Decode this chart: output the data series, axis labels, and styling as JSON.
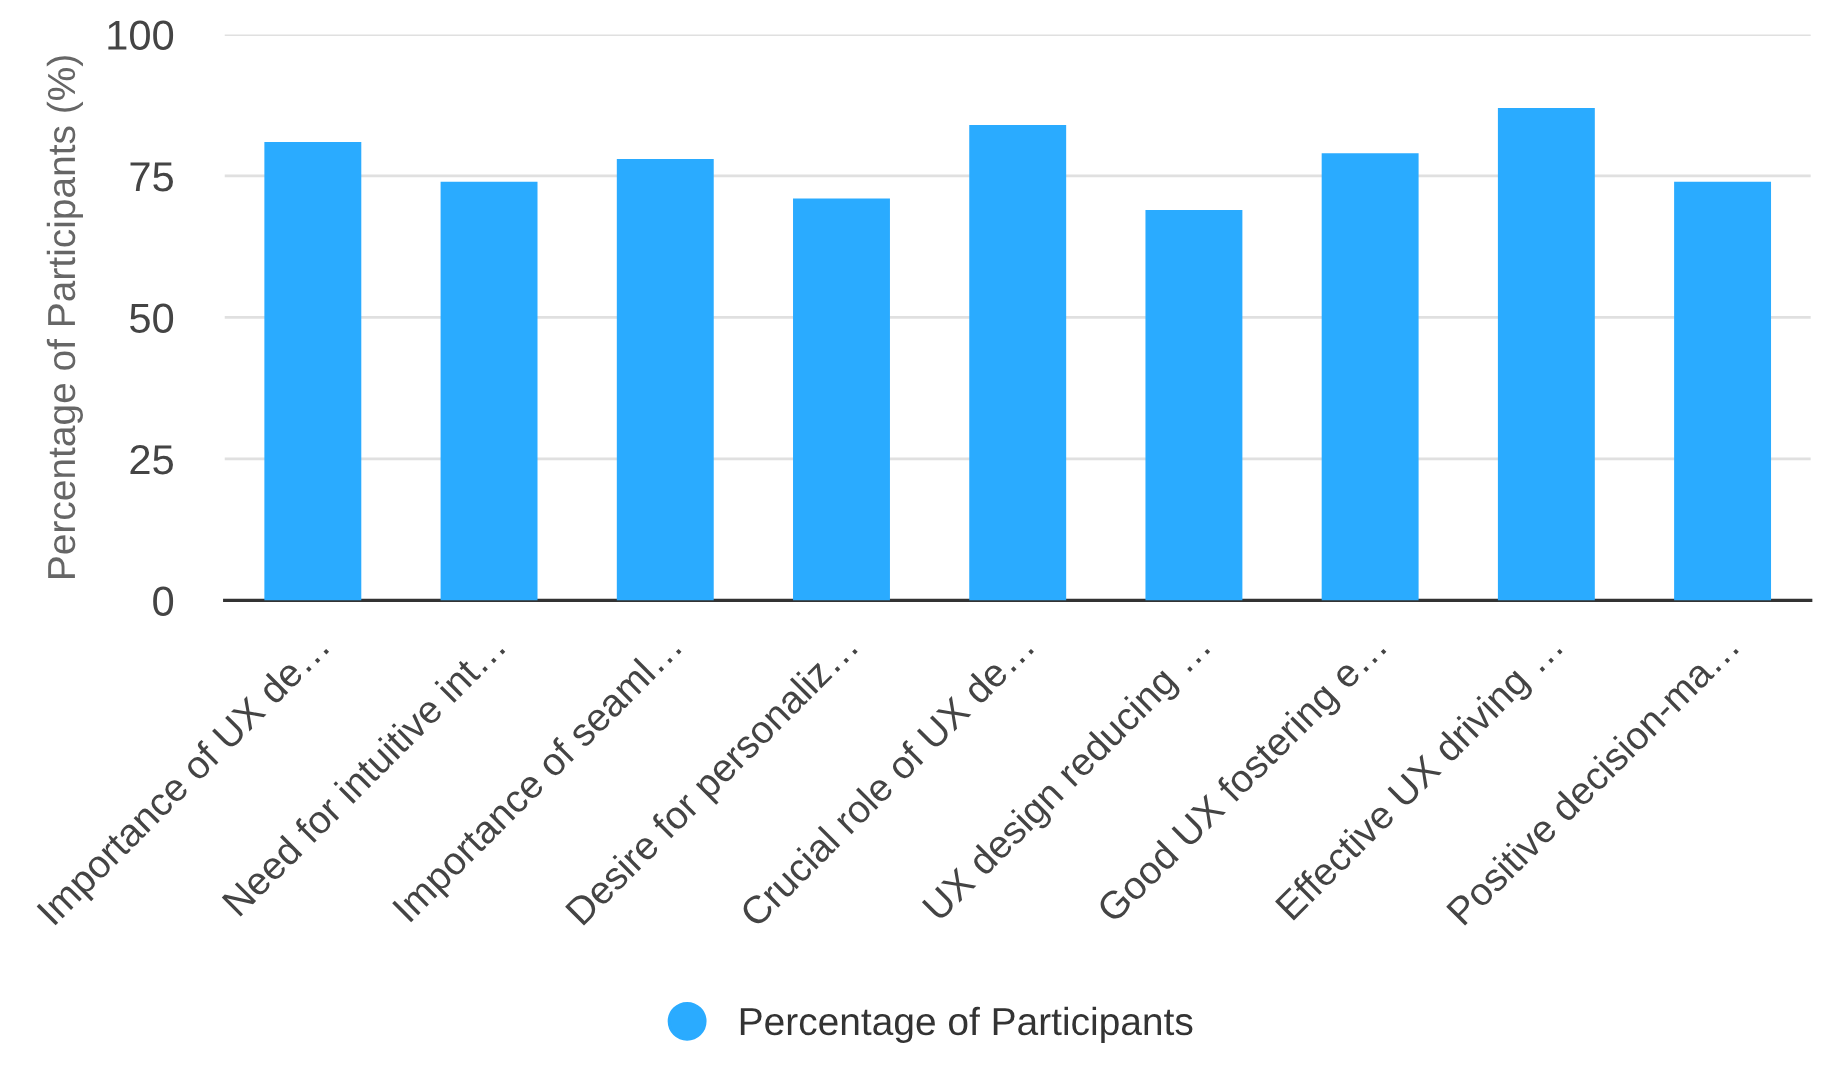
{
  "chart_data": {
    "type": "bar",
    "ylabel": "Percentage of Participants (%)",
    "categories": [
      "Importance of UX de…",
      "Need for intuitive int…",
      "Importance of seaml…",
      "Desire for personaliz…",
      "Crucial role of UX de…",
      "UX design reducing …",
      "Good UX fostering e…",
      "Effective UX driving …",
      "Positive decision-ma…"
    ],
    "series": [
      {
        "name": "Percentage of Participants",
        "color": "#2aabff",
        "values": [
          81,
          74,
          78,
          71,
          84,
          69,
          79,
          87,
          74
        ]
      }
    ],
    "ylim": [
      0,
      100
    ],
    "yticks": [
      0,
      25,
      50,
      75,
      100
    ],
    "grid": "y",
    "legend": "bottom"
  }
}
